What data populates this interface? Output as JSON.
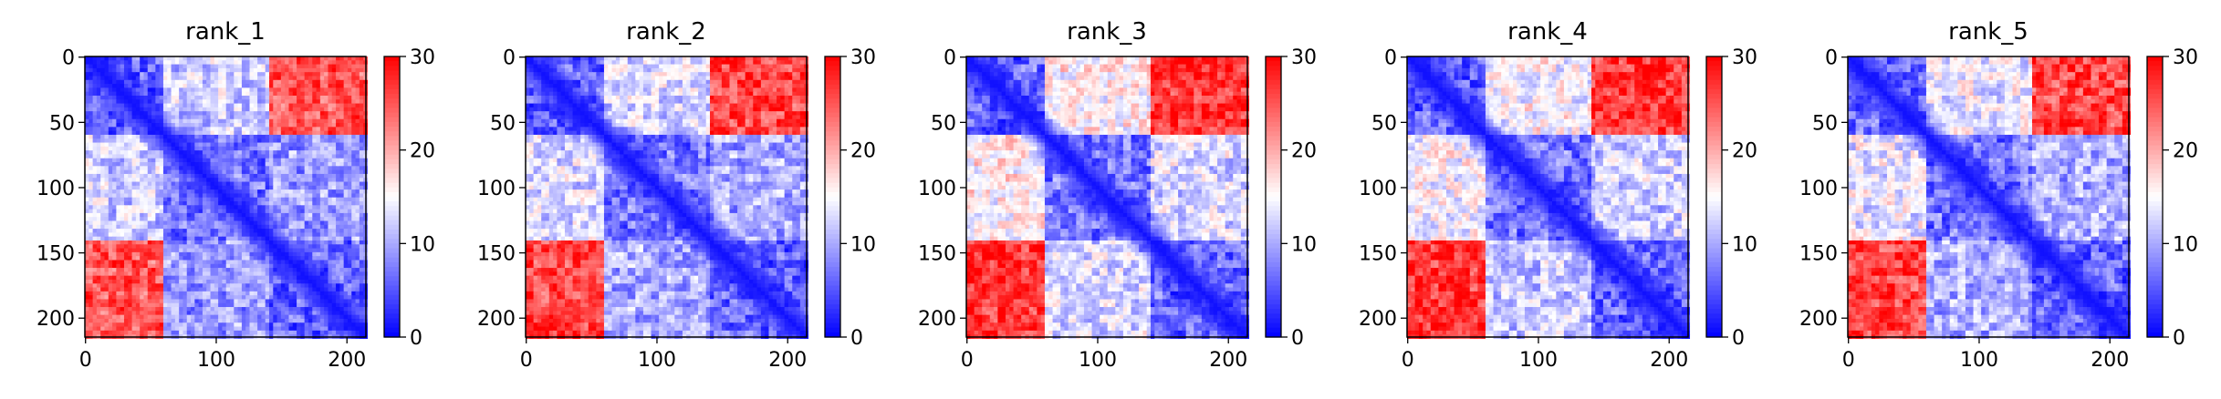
{
  "chart_data": [
    {
      "type": "heatmap",
      "title": "rank_1",
      "x_ticks": [
        "0",
        "100",
        "200"
      ],
      "y_ticks": [
        "0",
        "50",
        "100",
        "150",
        "200"
      ],
      "n_residues": 215,
      "colorbar": {
        "ticks": [
          "0",
          "10",
          "20",
          "30"
        ],
        "vmin": 0,
        "vmax": 30,
        "colormap": "bwr"
      },
      "matrix_summary": {
        "domain_breaks": [
          60,
          140
        ],
        "block_levels": [
          [
            6,
            12,
            25
          ],
          [
            12,
            7,
            9
          ],
          [
            25,
            9,
            6
          ]
        ]
      }
    },
    {
      "type": "heatmap",
      "title": "rank_2",
      "x_ticks": [
        "0",
        "100",
        "200"
      ],
      "y_ticks": [
        "0",
        "50",
        "100",
        "150",
        "200"
      ],
      "n_residues": 215,
      "colorbar": {
        "ticks": [
          "0",
          "10",
          "20",
          "30"
        ],
        "vmin": 0,
        "vmax": 30,
        "colormap": "bwr"
      },
      "matrix_summary": {
        "domain_breaks": [
          60,
          140
        ],
        "block_levels": [
          [
            6,
            13,
            26
          ],
          [
            13,
            7,
            10
          ],
          [
            26,
            10,
            6
          ]
        ]
      }
    },
    {
      "type": "heatmap",
      "title": "rank_3",
      "x_ticks": [
        "0",
        "100",
        "200"
      ],
      "y_ticks": [
        "0",
        "50",
        "100",
        "150",
        "200"
      ],
      "n_residues": 215,
      "colorbar": {
        "ticks": [
          "0",
          "10",
          "20",
          "30"
        ],
        "vmin": 0,
        "vmax": 30,
        "colormap": "bwr"
      },
      "matrix_summary": {
        "domain_breaks": [
          60,
          140
        ],
        "block_levels": [
          [
            6,
            16,
            27
          ],
          [
            16,
            7,
            13
          ],
          [
            27,
            13,
            6
          ]
        ]
      }
    },
    {
      "type": "heatmap",
      "title": "rank_4",
      "x_ticks": [
        "0",
        "100",
        "200"
      ],
      "y_ticks": [
        "0",
        "50",
        "100",
        "150",
        "200"
      ],
      "n_residues": 215,
      "colorbar": {
        "ticks": [
          "0",
          "10",
          "20",
          "30"
        ],
        "vmin": 0,
        "vmax": 30,
        "colormap": "bwr"
      },
      "matrix_summary": {
        "domain_breaks": [
          60,
          140
        ],
        "block_levels": [
          [
            6,
            15,
            27
          ],
          [
            15,
            7,
            12
          ],
          [
            27,
            12,
            6
          ]
        ]
      }
    },
    {
      "type": "heatmap",
      "title": "rank_5",
      "x_ticks": [
        "0",
        "100",
        "200"
      ],
      "y_ticks": [
        "0",
        "50",
        "100",
        "150",
        "200"
      ],
      "n_residues": 215,
      "colorbar": {
        "ticks": [
          "0",
          "10",
          "20",
          "30"
        ],
        "vmin": 0,
        "vmax": 30,
        "colormap": "bwr"
      },
      "matrix_summary": {
        "domain_breaks": [
          60,
          140
        ],
        "block_levels": [
          [
            6,
            14,
            26
          ],
          [
            14,
            7,
            10
          ],
          [
            26,
            10,
            6
          ]
        ]
      }
    }
  ]
}
